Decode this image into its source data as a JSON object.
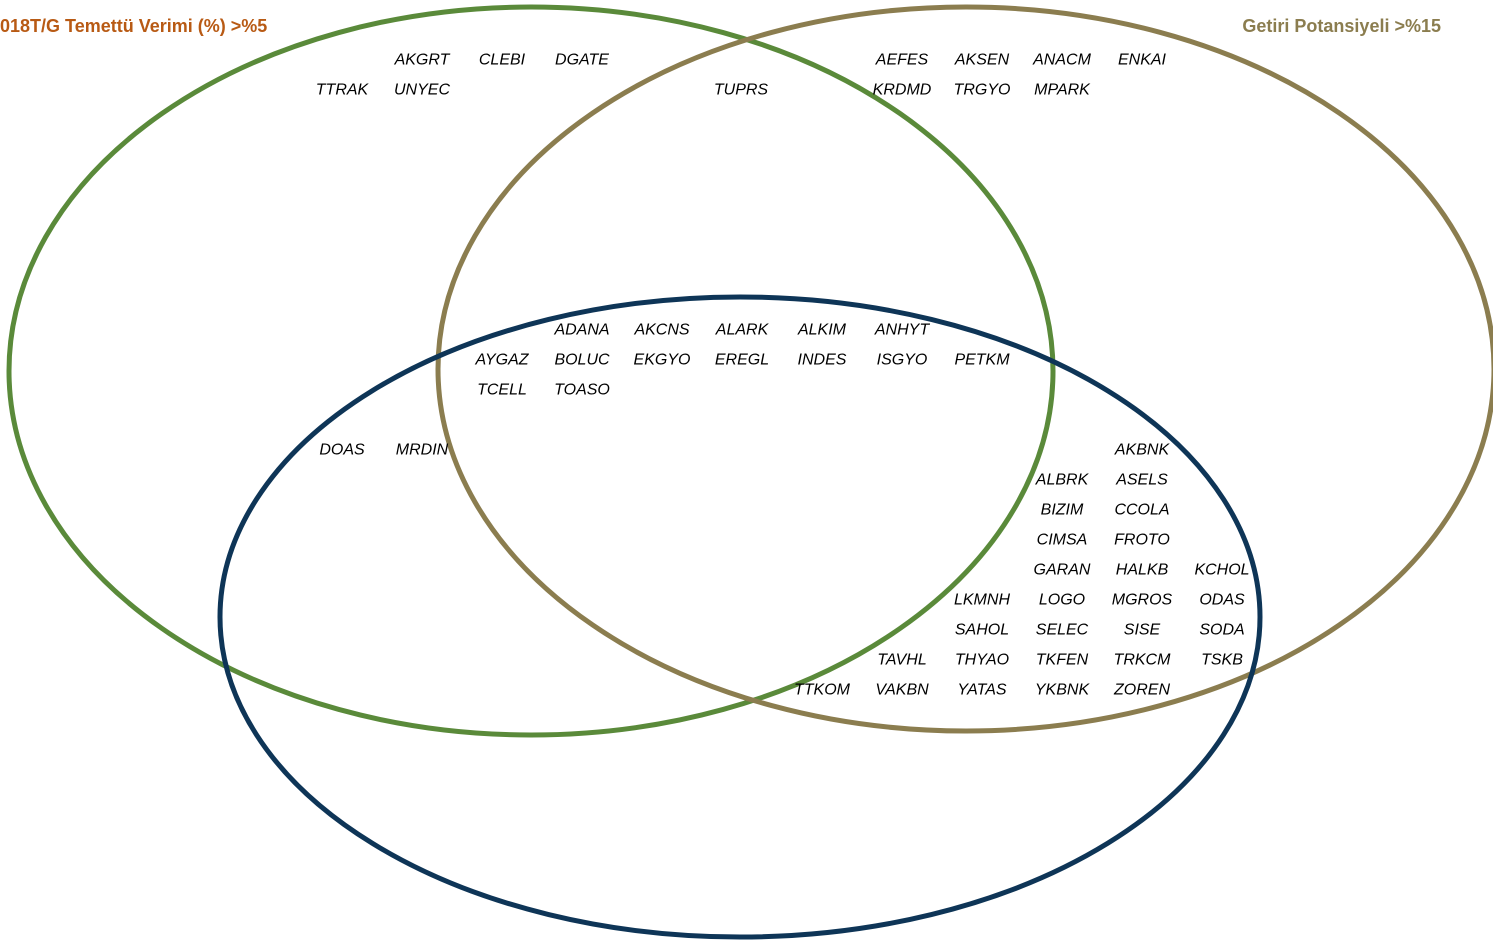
{
  "sets": [
    {
      "id": "a",
      "label": "018T/G Temettü Verimi (%) >%5",
      "color": "#5a8a3a",
      "label_color": "#b85a14"
    },
    {
      "id": "b",
      "label": "Getiri Potansiyeli >%15",
      "color": "#8b7d4f",
      "label_color": "#8b7d4f"
    },
    {
      "id": "c",
      "label": "",
      "color": "#0e3557"
    }
  ],
  "regions": {
    "a_only": [
      [
        "AKGRT",
        "CLEBI",
        "DGATE"
      ],
      [
        "TTRAK",
        "UNYEC"
      ]
    ],
    "a_b": [
      [
        "TUPRS"
      ]
    ],
    "b_only": [
      [
        "AEFES",
        "AKSEN",
        "ANACM",
        "ENKAI"
      ],
      [
        "KRDMD",
        "TRGYO",
        "MPARK"
      ]
    ],
    "a_b_c": [
      [
        "ADANA",
        "AKCNS",
        "ALARK",
        "ALKIM",
        "ANHYT"
      ],
      [
        "AYGAZ",
        "BOLUC",
        "EKGYO",
        "EREGL",
        "INDES",
        "ISGYO",
        "PETKM"
      ],
      [
        "TCELL",
        "TOASO"
      ]
    ],
    "a_c": [
      [
        "DOAS",
        "MRDIN"
      ]
    ],
    "b_c": [
      [
        "AKBNK"
      ],
      [
        "ALBRK",
        "ASELS"
      ],
      [
        "BIZIM",
        "CCOLA"
      ],
      [
        "CIMSA",
        "FROTO"
      ],
      [
        "GARAN",
        "HALKB",
        "KCHOL"
      ],
      [
        "LKMNH",
        "LOGO",
        "MGROS",
        "ODAS"
      ],
      [
        "SAHOL",
        "SELEC",
        "SISE",
        "SODA"
      ],
      [
        "TAVHL",
        "THYAO",
        "TKFEN",
        "TRKCM",
        "TSKB"
      ],
      [
        "TTKOM",
        "VAKBN",
        "YATAS",
        "YKBNK",
        "ZOREN"
      ]
    ]
  }
}
